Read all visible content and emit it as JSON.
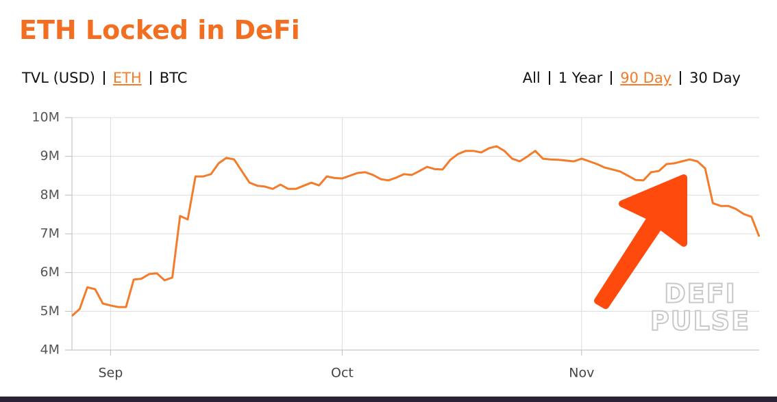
{
  "controls": {
    "units": [
      "TVL (USD)",
      "ETH",
      "BTC"
    ],
    "selected_unit": 1,
    "ranges": [
      "All",
      "1 Year",
      "90 Day",
      "30 Day"
    ],
    "selected_range": 2
  },
  "watermark": [
    "DEFI",
    "PULSE"
  ],
  "chart_data": {
    "type": "line",
    "title": "ETH Locked in DeFi",
    "categories": [
      null,
      null,
      null,
      null,
      null,
      "Sep",
      null,
      null,
      null,
      null,
      null,
      null,
      null,
      null,
      null,
      null,
      null,
      null,
      null,
      null,
      null,
      null,
      null,
      null,
      null,
      null,
      null,
      null,
      null,
      null,
      null,
      null,
      null,
      null,
      null,
      "Oct",
      null,
      null,
      null,
      null,
      null,
      null,
      null,
      null,
      null,
      null,
      null,
      null,
      null,
      null,
      null,
      null,
      null,
      null,
      null,
      null,
      null,
      null,
      null,
      null,
      null,
      null,
      null,
      null,
      null,
      null,
      "Nov",
      null,
      null,
      null,
      null,
      null,
      null,
      null,
      null,
      null,
      null,
      null,
      null,
      null,
      null,
      null,
      null,
      null,
      null,
      null,
      null,
      null,
      null,
      null
    ],
    "series": [
      {
        "name": "ETH",
        "color": "#f47b2a",
        "values": [
          4880000,
          5060000,
          5620000,
          5570000,
          5200000,
          5150000,
          5110000,
          5110000,
          5820000,
          5840000,
          5960000,
          5980000,
          5800000,
          5870000,
          7460000,
          7370000,
          8480000,
          8480000,
          8540000,
          8820000,
          8960000,
          8920000,
          8620000,
          8320000,
          8240000,
          8220000,
          8160000,
          8270000,
          8160000,
          8160000,
          8240000,
          8320000,
          8250000,
          8480000,
          8440000,
          8430000,
          8500000,
          8570000,
          8590000,
          8520000,
          8410000,
          8380000,
          8450000,
          8540000,
          8520000,
          8620000,
          8730000,
          8670000,
          8660000,
          8910000,
          9060000,
          9140000,
          9140000,
          9100000,
          9210000,
          9260000,
          9140000,
          8940000,
          8870000,
          9000000,
          9140000,
          8940000,
          8920000,
          8910000,
          8890000,
          8870000,
          8940000,
          8870000,
          8800000,
          8710000,
          8660000,
          8610000,
          8500000,
          8390000,
          8380000,
          8590000,
          8620000,
          8800000,
          8820000,
          8870000,
          8920000,
          8870000,
          8690000,
          7790000,
          7720000,
          7720000,
          7640000,
          7510000,
          7440000,
          6930000
        ]
      }
    ],
    "ylim": [
      4000000,
      10000000
    ],
    "yticks": [
      {
        "value": 4000000,
        "label": "4M"
      },
      {
        "value": 5000000,
        "label": "5M"
      },
      {
        "value": 6000000,
        "label": "6M"
      },
      {
        "value": 7000000,
        "label": "7M"
      },
      {
        "value": 8000000,
        "label": "8M"
      },
      {
        "value": 9000000,
        "label": "9M"
      },
      {
        "value": 10000000,
        "label": "10M"
      }
    ],
    "grid": true
  }
}
